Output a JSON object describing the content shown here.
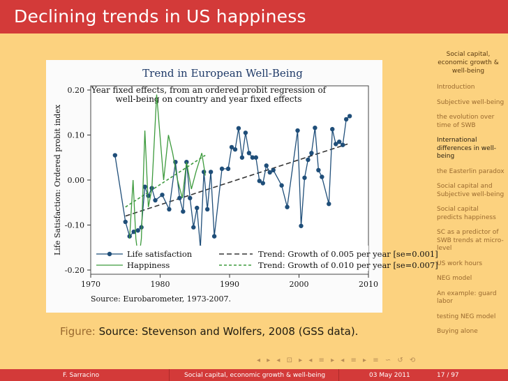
{
  "header": {
    "title": "Declining trends in US happiness"
  },
  "sidebar": {
    "heading": "Social capital, economic growth & well-being",
    "items": [
      {
        "label": "Introduction",
        "active": false
      },
      {
        "label": "Subjective well-being",
        "active": false
      },
      {
        "label": "the evolution over time of SWB",
        "active": false
      },
      {
        "label": "International differences in well-being",
        "active": true
      },
      {
        "label": "the Easterlin paradox",
        "active": false
      },
      {
        "label": "Social capital and Subjective well-being",
        "active": false
      },
      {
        "label": "Social capital predicts happiness",
        "active": false
      },
      {
        "label": "SC as a predictor of SWB trends at micro-level",
        "active": false
      },
      {
        "label": "US work hours",
        "active": false
      },
      {
        "label": "NEG model",
        "active": false
      },
      {
        "label": "An example: guard labor",
        "active": false
      },
      {
        "label": "testing NEG model",
        "active": false
      },
      {
        "label": "Buying alone",
        "active": false
      }
    ]
  },
  "figure": {
    "label": "Figure:",
    "caption": "Source: Stevenson and Wolfers, 2008 (GSS data)."
  },
  "nav": {
    "symbols": "◂ ▸ ◂ ⊡ ▸ ◂ ≡ ▸ ◂ ≡ ▸ ≡ ∽ ↺ ⟲"
  },
  "footer": {
    "author": "F. Sarracino",
    "talk": "Social capital, economic growth & well-being",
    "date": "03 May 2011",
    "page": "17 / 97"
  },
  "colors": {
    "title_bar": "#d33a39",
    "background": "#fcd27f",
    "life_satisfaction": "#1f4e79",
    "happiness": "#3c9a3c"
  },
  "chart_data": {
    "type": "line",
    "title": "Trend in European Well-Being",
    "subtitle": "Year fixed effects, from an ordered probit regression of well-being on country and year fixed effects",
    "xlabel": "",
    "ylabel": "Life Satisfaction: Ordered probit index",
    "source": "Source: Eurobarometer, 1973-2007.",
    "xlim": [
      1970,
      2010
    ],
    "ylim": [
      -0.2,
      0.2
    ],
    "x_ticks": [
      "1970",
      "1980",
      "1990",
      "2000",
      "2010"
    ],
    "y_ticks": [
      "0.20",
      "0.10",
      "0.00",
      "-0.10",
      "-0.20"
    ],
    "y_tick_values": [
      0.2,
      0.1,
      0.0,
      -0.1,
      -0.2
    ],
    "series": [
      {
        "name": "Life satisfaction",
        "color": "#1f4e79",
        "marker": "circle",
        "points": [
          [
            1973.5,
            0.055
          ],
          [
            1975,
            -0.093
          ],
          [
            1975.6,
            -0.125
          ],
          [
            1976.2,
            -0.115
          ],
          [
            1976.8,
            -0.112
          ],
          [
            1977.3,
            -0.105
          ],
          [
            1977.8,
            -0.015
          ],
          [
            1978.3,
            -0.035
          ],
          [
            1978.8,
            -0.018
          ],
          [
            1979.3,
            -0.045
          ],
          [
            1980.3,
            -0.033
          ],
          [
            1981.3,
            -0.065
          ],
          [
            1982.2,
            0.04
          ],
          [
            1982.8,
            -0.04
          ],
          [
            1983.3,
            -0.07
          ],
          [
            1983.8,
            0.04
          ],
          [
            1984.3,
            -0.04
          ],
          [
            1984.8,
            -0.105
          ],
          [
            1985.3,
            -0.062
          ],
          [
            1985.8,
            -0.15
          ],
          [
            1986.3,
            0.018
          ],
          [
            1986.8,
            -0.065
          ],
          [
            1987.3,
            0.018
          ],
          [
            1987.8,
            -0.125
          ],
          [
            1988.9,
            0.025
          ],
          [
            1989.8,
            0.025
          ],
          [
            1990.3,
            0.073
          ],
          [
            1990.8,
            0.068
          ],
          [
            1991.3,
            0.115
          ],
          [
            1991.8,
            0.05
          ],
          [
            1992.3,
            0.105
          ],
          [
            1992.8,
            0.06
          ],
          [
            1993.3,
            0.05
          ],
          [
            1993.8,
            0.05
          ],
          [
            1994.3,
            -0.002
          ],
          [
            1994.8,
            -0.007
          ],
          [
            1995.3,
            0.032
          ],
          [
            1995.8,
            0.017
          ],
          [
            1996.3,
            0.022
          ],
          [
            1997.5,
            -0.012
          ],
          [
            1998.3,
            -0.06
          ],
          [
            1999.8,
            0.11
          ],
          [
            2000.3,
            -0.102
          ],
          [
            2000.8,
            0.005
          ],
          [
            2001.3,
            0.045
          ],
          [
            2001.8,
            0.06
          ],
          [
            2002.3,
            0.116
          ],
          [
            2002.8,
            0.022
          ],
          [
            2003.3,
            0.007
          ],
          [
            2004.3,
            -0.053
          ],
          [
            2004.8,
            0.113
          ],
          [
            2005.3,
            0.08
          ],
          [
            2005.8,
            0.085
          ],
          [
            2006.3,
            0.078
          ],
          [
            2006.8,
            0.135
          ],
          [
            2007.3,
            0.142
          ]
        ]
      },
      {
        "name": "Happiness",
        "color": "#3c9a3c",
        "marker": "none",
        "points": [
          [
            1975.6,
            -0.13
          ],
          [
            1976.1,
            0.0
          ],
          [
            1976.5,
            -0.13
          ],
          [
            1976.9,
            -0.18
          ],
          [
            1977.3,
            -0.13
          ],
          [
            1977.8,
            0.11
          ],
          [
            1978.3,
            -0.06
          ],
          [
            1978.8,
            -0.02
          ],
          [
            1979.5,
            0.19
          ],
          [
            1980.5,
            0.0
          ],
          [
            1981.2,
            0.1
          ],
          [
            1981.8,
            0.06
          ],
          [
            1982.5,
            0.0
          ],
          [
            1983.2,
            -0.04
          ],
          [
            1983.8,
            0.04
          ],
          [
            1984.5,
            -0.02
          ],
          [
            1985.2,
            0.02
          ],
          [
            1986.0,
            0.06
          ],
          [
            1986.5,
            0.01
          ]
        ]
      }
    ],
    "trends": [
      {
        "name": "Trend: Growth of 0.005 per year [se=0.001]",
        "color": "#333333",
        "style": "dashed-long",
        "x": [
          1975,
          2007
        ],
        "y": [
          -0.08,
          0.08
        ]
      },
      {
        "name": "Trend: Growth of 0.010 per year [se=0.007]",
        "color": "#3c9a3c",
        "style": "dashed-short",
        "x": [
          1975,
          1986.5
        ],
        "y": [
          -0.06,
          0.055
        ]
      }
    ],
    "legend": {
      "placement": "bottom-inside",
      "entries": [
        "Life satisfaction",
        "Trend: Growth of 0.005 per year [se=0.001]",
        "Happiness",
        "Trend: Growth of 0.010 per year [se=0.007]"
      ]
    }
  }
}
